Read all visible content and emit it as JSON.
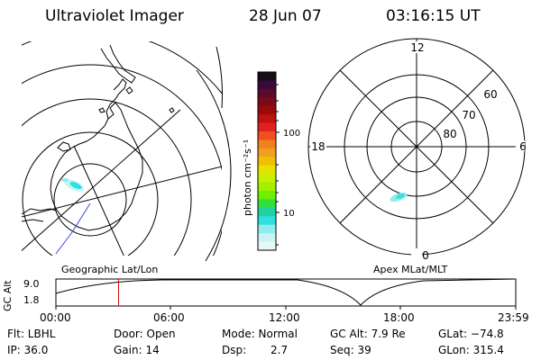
{
  "header": {
    "title": "Ultraviolet Imager",
    "date": "28 Jun 07",
    "time": "03:16:15 UT"
  },
  "colorbar": {
    "unit_label": "photon cm⁻²s⁻¹",
    "tick_100": "100",
    "tick_10": "10",
    "colors": [
      "#1a0a1a",
      "#3a0a3a",
      "#5a0a2a",
      "#7a0a1a",
      "#9a0a0a",
      "#c01010",
      "#e02020",
      "#f05020",
      "#f08020",
      "#f0a020",
      "#f0c000",
      "#e8e000",
      "#c8f000",
      "#a0f000",
      "#70f000",
      "#30e040",
      "#20d0a0",
      "#30e0e0",
      "#90ecec",
      "#c8f4f4",
      "#e8f8f8"
    ]
  },
  "left_map": {
    "caption": "Geographic Lat/Lon"
  },
  "right_map": {
    "caption": "Apex  MLat/MLT",
    "label_top": "12",
    "label_bottom": "0",
    "label_left": "18",
    "label_right": "6",
    "lat_60": "60",
    "lat_70": "70",
    "lat_80": "80"
  },
  "timeline": {
    "ylabel": "GC Alt",
    "y_top": "9.0",
    "y_bottom": "1.8",
    "ticks": [
      "00:00",
      "06:00",
      "12:00",
      "18:00",
      "23:59"
    ],
    "marker_hours": 3.27
  },
  "info": {
    "row1": {
      "flt": "Flt: LBHL",
      "door": "Door: Open",
      "mode": "Mode: Normal",
      "gcalt": "GC Alt: 7.9 Re",
      "glat": "GLat: −74.8"
    },
    "row2": {
      "ip": "IP: 36.0",
      "gain": "Gain: 14",
      "dsp_label": "Dsp:",
      "dsp_value": "2.7",
      "seq": "Seq: 39",
      "glon": "GLon: 315.4"
    }
  }
}
